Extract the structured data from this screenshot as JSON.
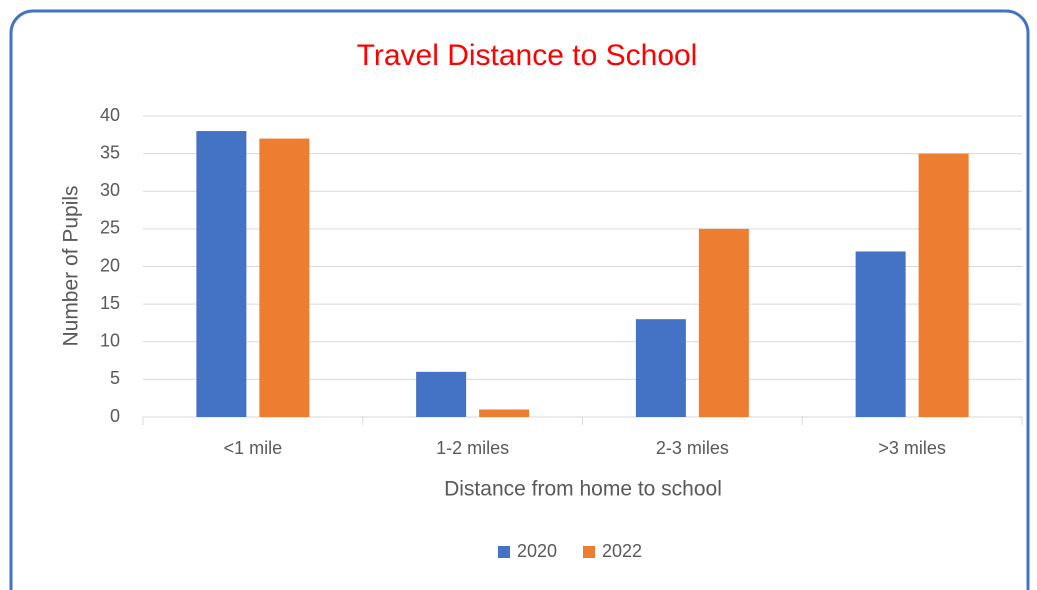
{
  "chart_data": {
    "type": "bar",
    "title": "Travel Distance to School",
    "x_label": "Distance from home to school",
    "y_label": "Number of Pupils",
    "categories": [
      "<1 mile",
      "1-2 miles",
      "2-3 miles",
      ">3 miles"
    ],
    "series": [
      {
        "name": "2020",
        "color": "#4472c4",
        "values": [
          38,
          6,
          13,
          22
        ]
      },
      {
        "name": "2022",
        "color": "#ed7d31",
        "values": [
          37,
          1,
          25,
          35
        ]
      }
    ],
    "ylim": [
      0,
      40
    ],
    "yticks": [
      0,
      5,
      10,
      15,
      20,
      25,
      30,
      35,
      40
    ],
    "grid": true,
    "legend": "bottom",
    "title_color": "#ff0000"
  }
}
